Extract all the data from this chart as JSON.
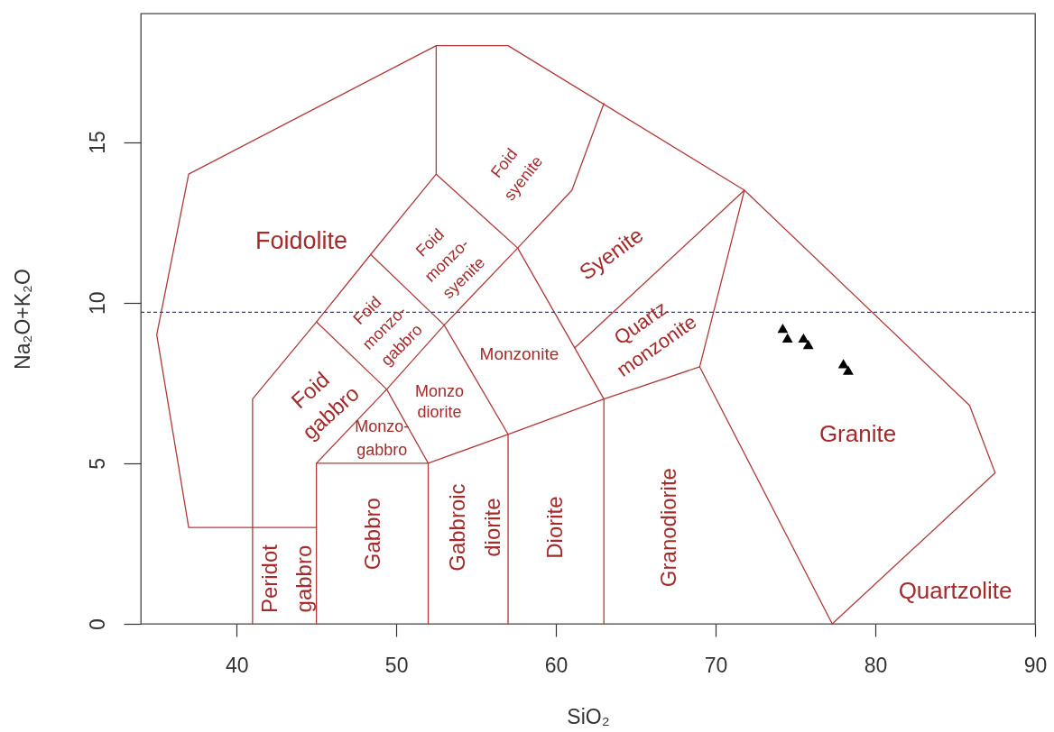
{
  "chart_data": {
    "type": "scatter",
    "xlabel": "SiO₂",
    "ylabel": "Na₂O+K₂O",
    "xlim": [
      34,
      90
    ],
    "ylim": [
      0,
      19
    ],
    "xticks": [
      40,
      50,
      60,
      70,
      80,
      90
    ],
    "yticks": [
      0,
      5,
      10,
      15
    ],
    "series": [
      {
        "type": "line",
        "color": "#b03a3a",
        "x": [
          45,
          37,
          35,
          37,
          52.5,
          57,
          71.8,
          85.9,
          87.5,
          77.3
        ],
        "values": [
          3,
          3,
          9,
          14,
          18,
          18,
          13.5,
          6.8,
          4.7,
          0
        ]
      },
      {
        "type": "line",
        "color": "#b03a3a",
        "x": [
          41,
          41,
          45,
          48.4,
          52.5,
          52.5
        ],
        "values": [
          0,
          7,
          9.4,
          11.5,
          14,
          18
        ]
      },
      {
        "type": "line",
        "color": "#b03a3a",
        "x": [
          45,
          45,
          52,
          52
        ],
        "values": [
          0,
          5,
          5,
          0
        ]
      },
      {
        "type": "line",
        "color": "#b03a3a",
        "x": [
          45,
          49.4,
          53,
          57.6,
          61,
          63
        ],
        "values": [
          5,
          7.3,
          9.3,
          11.7,
          13.5,
          16.2
        ]
      },
      {
        "type": "line",
        "color": "#b03a3a",
        "x": [
          45,
          49.4,
          52,
          57,
          63,
          69,
          77.3
        ],
        "values": [
          9.4,
          7.3,
          5,
          5.9,
          7,
          8,
          0
        ]
      },
      {
        "type": "line",
        "color": "#b03a3a",
        "x": [
          48.4,
          53,
          57,
          57
        ],
        "values": [
          11.5,
          9.3,
          5.9,
          0
        ]
      },
      {
        "type": "line",
        "color": "#b03a3a",
        "x": [
          52.5,
          57.6,
          63,
          63
        ],
        "values": [
          14,
          11.7,
          7,
          0
        ]
      },
      {
        "type": "line",
        "color": "#b03a3a",
        "x": [
          61.2,
          71.8,
          69
        ],
        "values": [
          8.6,
          13.5,
          8
        ]
      },
      {
        "color": "#000000",
        "marker": "triangle",
        "x": [
          74.2,
          74.5,
          75.5,
          75.8,
          78.0,
          78.3
        ],
        "values": [
          9.2,
          8.9,
          8.9,
          8.7,
          8.1,
          7.9
        ]
      }
    ],
    "ref_lines": [
      {
        "axis": "y",
        "value": 9.7,
        "color": "#33415c",
        "line_style": "dashed"
      }
    ],
    "annotations": [
      "Foid\nsyenite",
      "Foidolite",
      "Foid\nmonzo-\nsyenite",
      "Syenite",
      "Foid\nmonzo-\ngabbro",
      "Quartz\nmonzonite",
      "Monzonite",
      "Foid\ngabbro",
      "Monzo\ndiorite",
      "Monzo-\ngabbro",
      "Granite",
      "Peridot\ngabbro",
      "Gabbro",
      "Gabbroic\ndiorite",
      "Diorite",
      "Granodiorite",
      "Quartzolite"
    ]
  }
}
